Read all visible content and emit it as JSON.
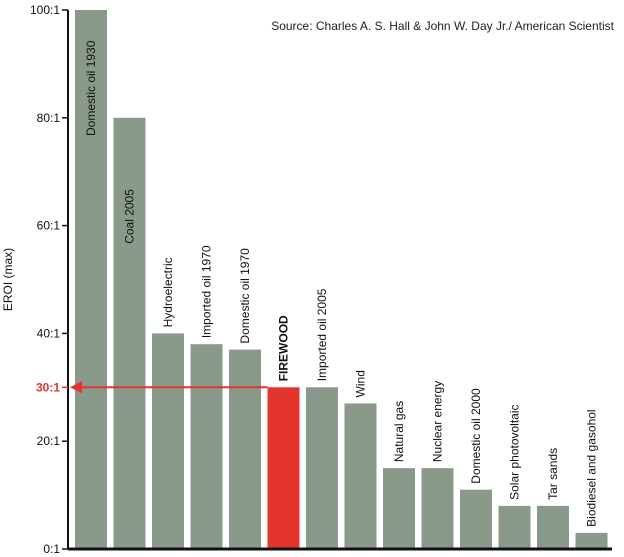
{
  "chart_data": {
    "type": "bar",
    "source_note": "Source: Charles A. S. Hall & John W. Day Jr./ American Scientist",
    "ylabel": "EROI (max)",
    "xlabel": "",
    "ylim": [
      0,
      100
    ],
    "yticks": [
      {
        "value": 0,
        "label": "0:1"
      },
      {
        "value": 20,
        "label": "20:1"
      },
      {
        "value": 40,
        "label": "40:1"
      },
      {
        "value": 60,
        "label": "60:1"
      },
      {
        "value": 80,
        "label": "80:1"
      },
      {
        "value": 100,
        "label": "100:1"
      }
    ],
    "categories": [
      "Domestic oil 1930",
      "Coal 2005",
      "Hydroelectric",
      "Imported oil 1970",
      "Domestic oil 1970",
      "FIREWOOD",
      "Imported oil 2005",
      "Wind",
      "Natural gas",
      "Nuclear energy",
      "Domestic oil 2000",
      "Solar photovoltaic",
      "Tar sands",
      "Biodiesel and gasohol"
    ],
    "values": [
      100,
      80,
      40,
      38,
      37,
      30,
      30,
      27,
      15,
      15,
      11,
      8,
      8,
      3
    ],
    "highlight": {
      "category": "FIREWOOD",
      "value": 30,
      "label": "30:1"
    },
    "colors": {
      "bar": "#8a9a8a",
      "highlight": "#e3352b",
      "axis": "#111111",
      "arrow": "#e3352b"
    },
    "grid": false,
    "legend": "none"
  }
}
